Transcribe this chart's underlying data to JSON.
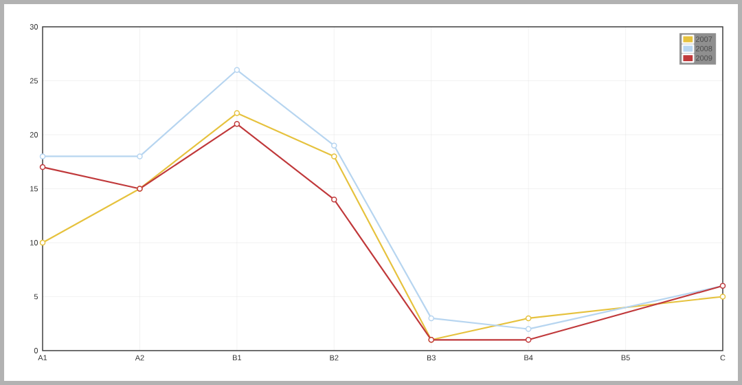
{
  "chart_data": {
    "type": "line",
    "categories": [
      "A1",
      "A2",
      "B1",
      "B2",
      "B3",
      "B4",
      "B5",
      "C"
    ],
    "series": [
      {
        "name": "2007",
        "color": "#e6c23e",
        "values": [
          10,
          15,
          22,
          18,
          1,
          3,
          null,
          5
        ]
      },
      {
        "name": "2008",
        "color": "#b7d5f0",
        "values": [
          18,
          18,
          26,
          19,
          3,
          2,
          null,
          6
        ]
      },
      {
        "name": "2009",
        "color": "#c0393b",
        "values": [
          17,
          15,
          21,
          14,
          1,
          1,
          null,
          6
        ]
      }
    ],
    "ylim": [
      0,
      30
    ],
    "yticks": [
      0,
      5,
      10,
      15,
      20,
      25,
      30
    ],
    "grid": true,
    "legend": "top right",
    "marker": "circle",
    "line_style": "solid"
  }
}
